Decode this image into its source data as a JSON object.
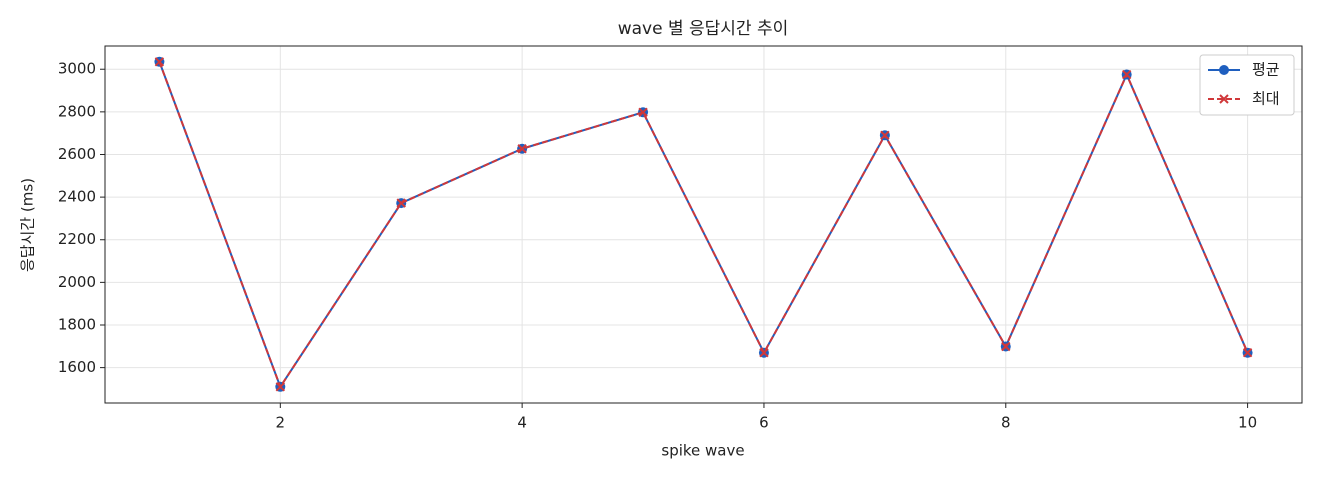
{
  "chart_data": {
    "type": "line",
    "title": "wave 별 응답시간 추이",
    "x_label": "spike wave",
    "y_label": "응답시간 (ms)",
    "x": [
      1,
      2,
      3,
      4,
      5,
      6,
      7,
      8,
      9,
      10
    ],
    "series": [
      {
        "name": "평균",
        "color": "#1f5fbf",
        "marker": "circle",
        "dash": false,
        "values": [
          3035,
          1510,
          2372,
          2627,
          2798,
          1670,
          2690,
          1699,
          2975,
          1670
        ]
      },
      {
        "name": "최대",
        "color": "#d0383a",
        "marker": "x",
        "dash": true,
        "values": [
          3035,
          1510,
          2372,
          2627,
          2798,
          1670,
          2690,
          1699,
          2975,
          1670
        ]
      }
    ],
    "xlim": [
      0.55,
      10.45
    ],
    "xticks": [
      2,
      4,
      6,
      8,
      10
    ],
    "ylim": [
      1434,
      3109
    ],
    "yticks": [
      1600,
      1800,
      2000,
      2200,
      2400,
      2600,
      2800,
      3000
    ],
    "grid": true,
    "legend": "upper right"
  }
}
